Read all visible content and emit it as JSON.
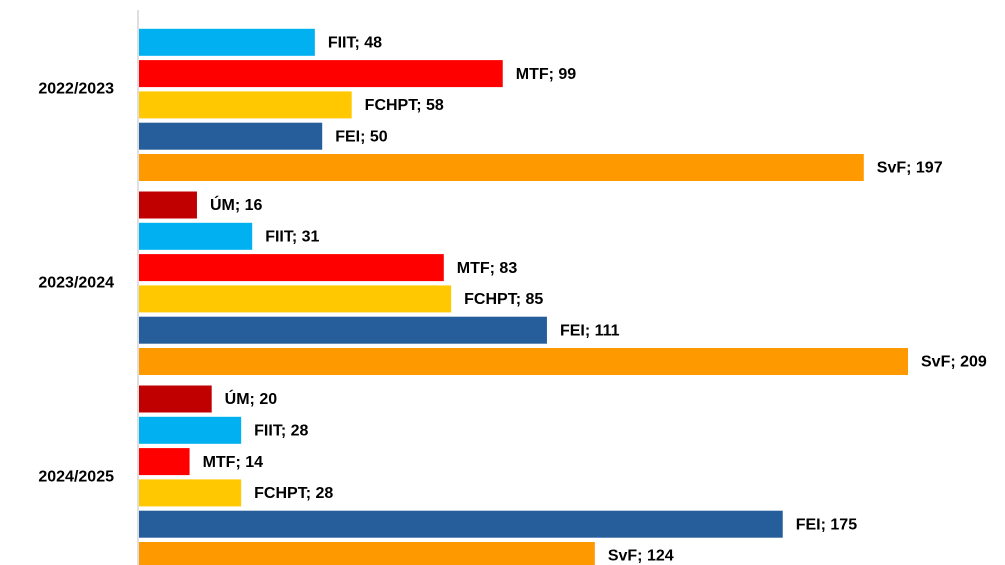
{
  "chart_data": {
    "type": "bar",
    "orientation": "horizontal",
    "categories": [
      "2022/2023",
      "2023/2024",
      "2024/2025"
    ],
    "series": [
      {
        "name": "ÚM",
        "color": "#c00000",
        "values": [
          null,
          16,
          20
        ],
        "value_labels": [
          null,
          "ÚM; 16",
          "ÚM; 20"
        ]
      },
      {
        "name": "FIIT",
        "color": "#00b0f0",
        "values": [
          48,
          31,
          28
        ],
        "value_labels": [
          "FIIT; 48",
          "FIIT; 31",
          "FIIT; 28"
        ]
      },
      {
        "name": "MTF",
        "color": "#ff0000",
        "values": [
          99,
          83,
          14
        ],
        "value_labels": [
          "MTF; 99",
          "MTF; 83",
          "MTF; 14"
        ]
      },
      {
        "name": "FCHPT",
        "color": "#ffc800",
        "values": [
          58,
          85,
          28
        ],
        "value_labels": [
          "FCHPT; 58",
          "FCHPT; 85",
          "FCHPT; 28"
        ]
      },
      {
        "name": "FEI",
        "color": "#255e9b",
        "values": [
          50,
          111,
          175
        ],
        "value_labels": [
          "FEI; 50",
          "FEI; 111",
          "FEI; 175"
        ]
      },
      {
        "name": "SvF",
        "color": "#ff9900",
        "values": [
          197,
          209,
          124
        ],
        "value_labels": [
          "SvF; 197",
          "SvF; 209",
          "SvF; 124"
        ]
      }
    ]
  }
}
